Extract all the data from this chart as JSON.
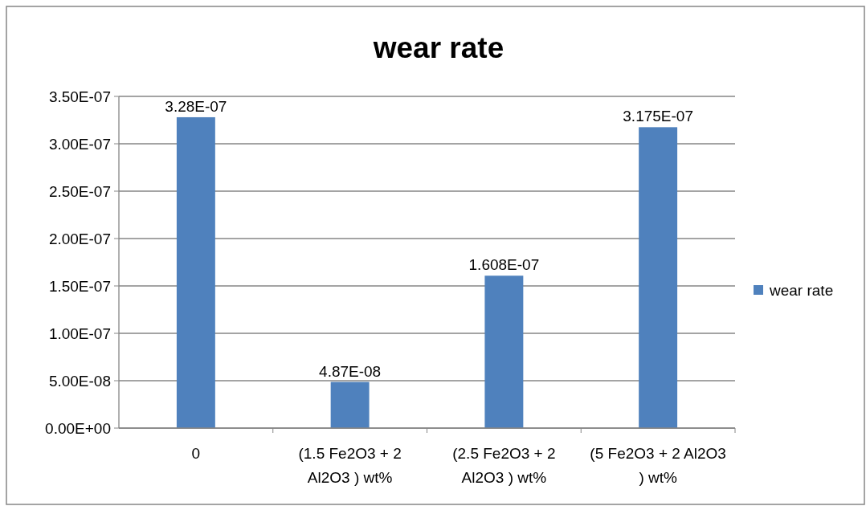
{
  "chart_data": {
    "type": "bar",
    "title": "wear rate",
    "categories": [
      "0",
      "(1.5 Fe2O3 + 2 Al2O3 ) wt%",
      "(2.5 Fe2O3 + 2 Al2O3 ) wt%",
      "(5 Fe2O3 + 2 Al2O3 ) wt%"
    ],
    "series": [
      {
        "name": "wear rate",
        "color": "#4f81bd",
        "values": [
          3.28e-07,
          4.87e-08,
          1.608e-07,
          3.175e-07
        ],
        "value_labels": [
          "3.28E-07",
          "4.87E-08",
          "1.608E-07",
          "3.175E-07"
        ]
      }
    ],
    "ylim": [
      0,
      3.5e-07
    ],
    "yticks": [
      {
        "value": 0,
        "label": "0.00E+00"
      },
      {
        "value": 5e-08,
        "label": "5.00E-08"
      },
      {
        "value": 1e-07,
        "label": "1.00E-07"
      },
      {
        "value": 1.5e-07,
        "label": "1.50E-07"
      },
      {
        "value": 2e-07,
        "label": "2.00E-07"
      },
      {
        "value": 2.5e-07,
        "label": "2.50E-07"
      },
      {
        "value": 3e-07,
        "label": "3.00E-07"
      },
      {
        "value": 3.5e-07,
        "label": "3.50E-07"
      }
    ],
    "grid": "y",
    "legend": "right"
  }
}
